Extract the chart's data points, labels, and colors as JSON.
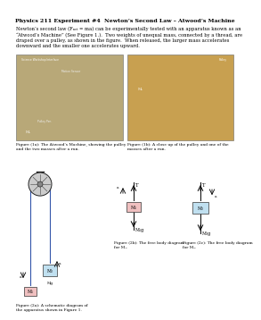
{
  "title": "Physics 211 Experiment #4  Newton’s Second Law – Atwood’s Machine",
  "body_text": "Newton’s second law (Fₙₑₜ = ma) can be experimentally tested with an apparatus known as an\n“Atwood’s Machine” (See Figure 1.).  Two weights of unequal mass, connected by a thread, are\ndraped over a pulley, as shown in the figure.  When released, the larger mass accelerates\ndownward and the smaller one accelerates upward.",
  "caption1a": "Figure (1a): The Atwood’s Machine, showing the pulley\nand the two masses after a run.",
  "caption1b": "Figure (1b): A close up of the pulley and one of the\nmasses after a run.",
  "caption2a": "Figure (2a): A schematic diagram of\nthe apparatus shown in Figure 1.",
  "caption2b": "Figure (2b): The free body diagram\nfor M₁.",
  "caption2c": "Figure (2c): The free body diagram\nfor M₂.",
  "bg_color": "#ffffff",
  "text_color": "#000000",
  "title_fontsize": 4.5,
  "body_fontsize": 3.8,
  "caption_fontsize": 3.2,
  "photo1_color": "#b8a878",
  "photo2_color": "#c8a050",
  "mass1_color": "#f0c0c0",
  "mass2_color": "#c0e0f0"
}
